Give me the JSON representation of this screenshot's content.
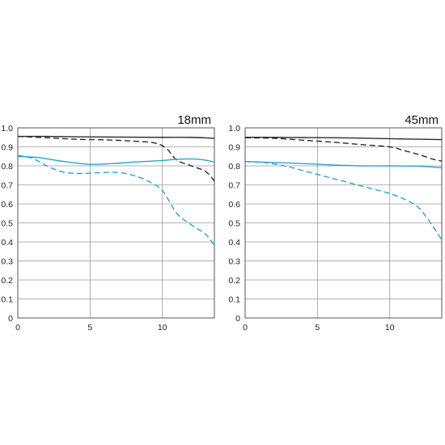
{
  "colors": {
    "black": "#2b2b2b",
    "blue": "#2aa3d3",
    "grid": "#9a9a9a"
  },
  "chart_data": [
    {
      "type": "line",
      "title": "18mm",
      "xlim": [
        0,
        13.6
      ],
      "ylim": [
        0,
        1.0
      ],
      "xticks": [
        0,
        5,
        10
      ],
      "yticks": [
        0,
        0.1,
        0.2,
        0.3,
        0.4,
        0.5,
        0.6,
        0.7,
        0.8,
        0.9,
        1.0
      ],
      "xtick_labels": [
        "0",
        "5",
        "10"
      ],
      "ytick_labels": [
        "0",
        "0.1",
        "0.2",
        "0.3",
        "0.4",
        "0.5",
        "0.6",
        "0.7",
        "0.8",
        "0.9",
        "1.0"
      ],
      "grid": true,
      "series": [
        {
          "color": "black",
          "dash": false,
          "x": [
            0,
            2,
            4,
            6,
            8,
            10,
            12,
            13.6
          ],
          "y": [
            0.955,
            0.955,
            0.953,
            0.952,
            0.951,
            0.95,
            0.95,
            0.945
          ]
        },
        {
          "color": "black",
          "dash": true,
          "x": [
            0,
            2,
            4,
            6,
            8,
            9.5,
            10.3,
            11,
            12,
            13,
            13.6
          ],
          "y": [
            0.955,
            0.948,
            0.94,
            0.937,
            0.93,
            0.92,
            0.89,
            0.83,
            0.8,
            0.77,
            0.72
          ]
        },
        {
          "color": "blue",
          "dash": false,
          "x": [
            0,
            1.5,
            3,
            5,
            6.5,
            8,
            10,
            11,
            12.5,
            13.6
          ],
          "y": [
            0.85,
            0.843,
            0.825,
            0.808,
            0.812,
            0.82,
            0.828,
            0.835,
            0.835,
            0.82
          ]
        },
        {
          "color": "blue",
          "dash": true,
          "x": [
            0,
            1,
            2,
            3,
            4,
            5,
            6,
            7,
            8,
            9,
            10,
            11,
            12,
            13,
            13.6
          ],
          "y": [
            0.855,
            0.84,
            0.8,
            0.77,
            0.76,
            0.762,
            0.765,
            0.765,
            0.75,
            0.72,
            0.67,
            0.55,
            0.49,
            0.44,
            0.38
          ]
        }
      ]
    },
    {
      "type": "line",
      "title": "45mm",
      "xlim": [
        0,
        13.6
      ],
      "ylim": [
        0,
        1.0
      ],
      "xticks": [
        0,
        5,
        10
      ],
      "yticks": [
        0,
        0.1,
        0.2,
        0.3,
        0.4,
        0.5,
        0.6,
        0.7,
        0.8,
        0.9,
        1.0
      ],
      "xtick_labels": [
        "0",
        "5",
        "10"
      ],
      "ytick_labels": [
        "0",
        "0.1",
        "0.2",
        "0.3",
        "0.4",
        "0.5",
        "0.6",
        "0.7",
        "0.8",
        "0.9",
        "1.0"
      ],
      "grid": true,
      "series": [
        {
          "color": "black",
          "dash": false,
          "x": [
            0,
            2,
            4,
            6,
            8,
            10,
            12,
            13.6
          ],
          "y": [
            0.95,
            0.95,
            0.949,
            0.948,
            0.946,
            0.943,
            0.94,
            0.938
          ]
        },
        {
          "color": "black",
          "dash": true,
          "x": [
            0,
            2,
            4,
            6,
            8,
            10,
            11,
            12,
            13,
            13.6
          ],
          "y": [
            0.948,
            0.945,
            0.935,
            0.925,
            0.912,
            0.9,
            0.88,
            0.86,
            0.835,
            0.825
          ]
        },
        {
          "color": "blue",
          "dash": false,
          "x": [
            0,
            2,
            4,
            6,
            8,
            10,
            12,
            13.6
          ],
          "y": [
            0.822,
            0.818,
            0.812,
            0.805,
            0.8,
            0.8,
            0.798,
            0.79
          ]
        },
        {
          "color": "blue",
          "dash": true,
          "x": [
            0,
            1,
            2,
            3,
            4,
            5,
            6,
            7,
            8,
            9,
            10,
            11,
            12,
            13,
            13.6
          ],
          "y": [
            0.822,
            0.82,
            0.81,
            0.795,
            0.775,
            0.755,
            0.735,
            0.715,
            0.695,
            0.675,
            0.655,
            0.625,
            0.58,
            0.48,
            0.41
          ]
        }
      ]
    }
  ]
}
